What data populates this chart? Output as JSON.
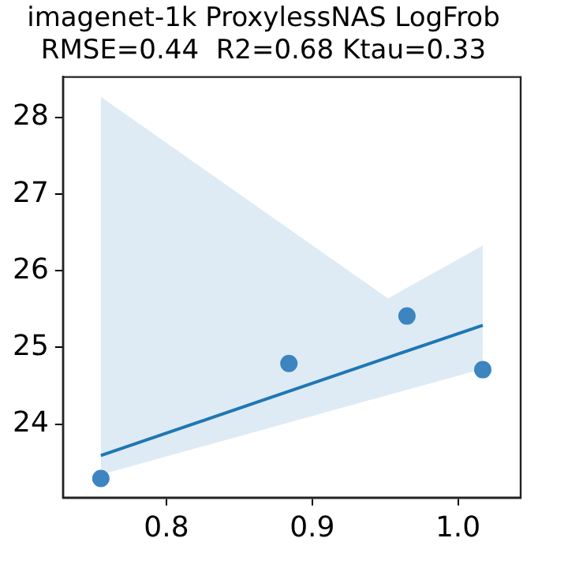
{
  "chart_data": {
    "type": "scatter",
    "title": "imagenet-1k ProxylessNAS LogFrob",
    "subtitle": "RMSE=0.44  R2=0.68 Ktau=0.33",
    "series": [
      {
        "marker": "circle",
        "color": "#3d85c0",
        "x": [
          0.755,
          0.884,
          0.965,
          1.017
        ],
        "values": [
          23.29,
          24.79,
          25.41,
          24.71
        ]
      },
      {
        "type": "line",
        "marker": "none",
        "color": "#1f77b4",
        "x": [
          0.755,
          0.952,
          1.017
        ],
        "values": [
          23.59,
          24.87,
          25.29
        ],
        "lower": [
          23.34,
          24.38,
          24.72
        ],
        "upper": [
          28.27,
          25.64,
          26.33
        ]
      }
    ],
    "xlim": [
      0.729,
      1.043
    ],
    "ylim": [
      23.04,
      28.53
    ],
    "xticks": [
      0.8,
      0.9,
      {
        "value": 1,
        "label": "1.0"
      }
    ],
    "yticks": [
      24,
      25,
      26,
      27,
      28
    ],
    "grid": false,
    "legend": false,
    "line_style": "solid"
  }
}
